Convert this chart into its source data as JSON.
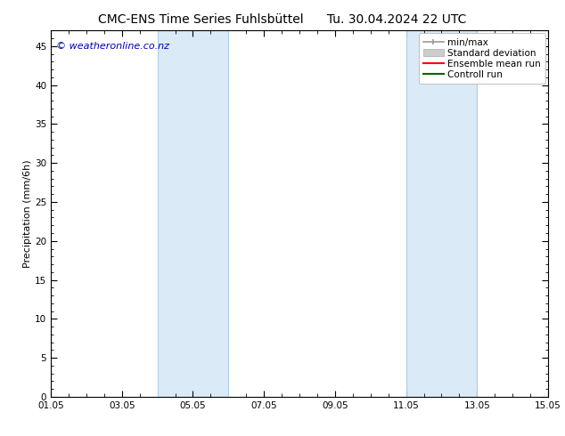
{
  "title_left": "CMC-ENS Time Series Fuhlsbüttel",
  "title_right": "Tu. 30.04.2024 22 UTC",
  "ylabel": "Precipitation (mm/6h)",
  "xlim": [
    0,
    14
  ],
  "ylim": [
    0,
    47
  ],
  "yticks": [
    0,
    5,
    10,
    15,
    20,
    25,
    30,
    35,
    40,
    45
  ],
  "xtick_labels": [
    "01.05",
    "03.05",
    "05.05",
    "07.05",
    "09.05",
    "11.05",
    "13.05",
    "15.05"
  ],
  "xtick_positions": [
    0,
    2,
    4,
    6,
    8,
    10,
    12,
    14
  ],
  "shaded_regions": [
    {
      "x_start": 3.0,
      "x_end": 5.0,
      "color": "#daeaf7"
    },
    {
      "x_start": 10.0,
      "x_end": 12.0,
      "color": "#daeaf7"
    }
  ],
  "shaded_borders": [
    {
      "x": 3.0,
      "color": "#b0cfe8"
    },
    {
      "x": 5.0,
      "color": "#b0cfe8"
    },
    {
      "x": 10.0,
      "color": "#b0cfe8"
    },
    {
      "x": 12.0,
      "color": "#b0cfe8"
    }
  ],
  "legend_labels": [
    "min/max",
    "Standard deviation",
    "Ensemble mean run",
    "Controll run"
  ],
  "legend_colors": [
    "#999999",
    "#cccccc",
    "#ff0000",
    "#006600"
  ],
  "watermark_text": "© weatheronline.co.nz",
  "watermark_color": "#0000bb",
  "bg_color": "#ffffff",
  "title_fontsize": 10,
  "tick_label_fontsize": 7.5,
  "axis_label_fontsize": 8,
  "legend_fontsize": 7.5
}
